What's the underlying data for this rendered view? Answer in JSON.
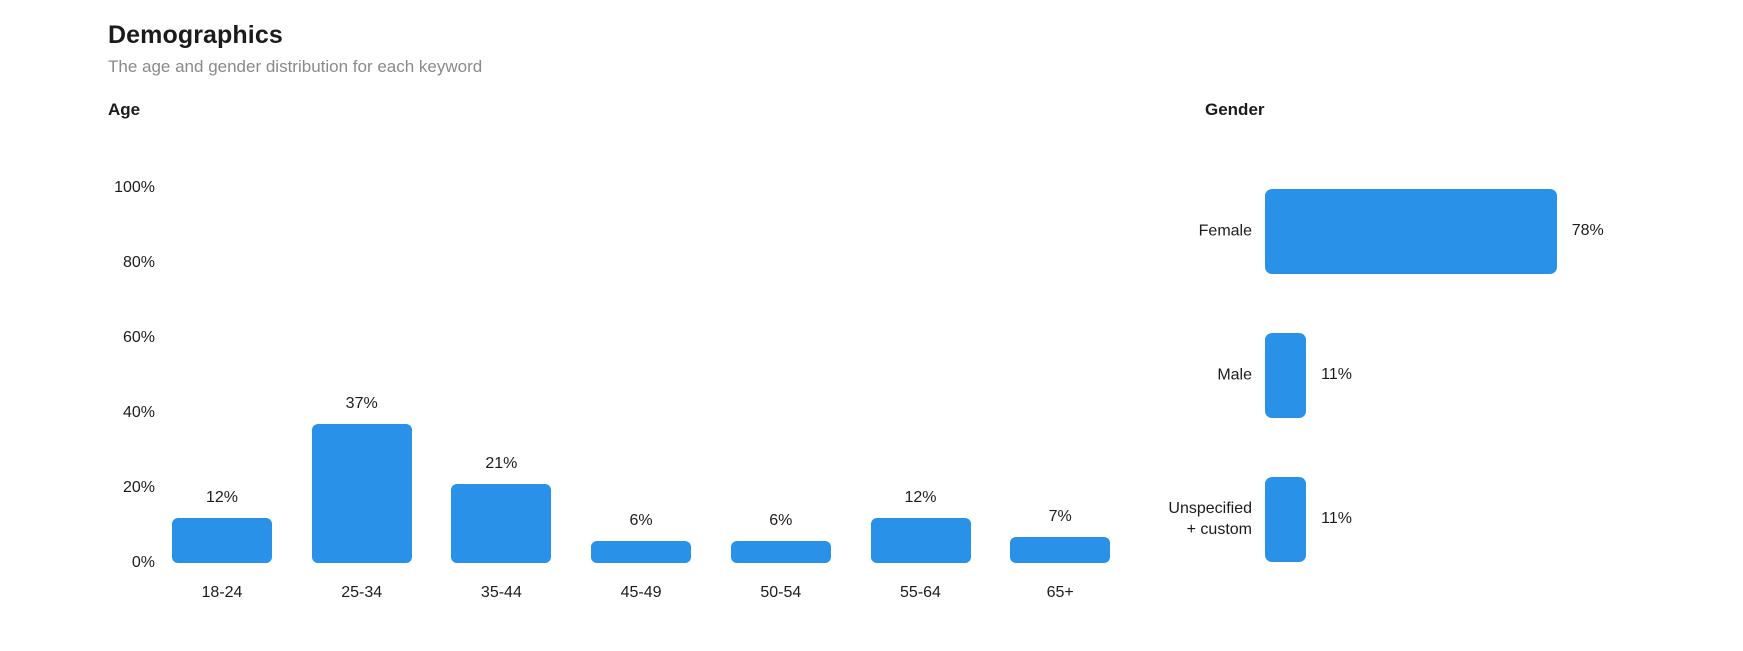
{
  "header": {
    "title": "Demographics",
    "subtitle": "The age and gender distribution for each keyword"
  },
  "colors": {
    "bar_blue": "#2A91E8",
    "title_text": "#1B1B1B",
    "subtitle_text": "#8A8A8A",
    "axis_text": "#1C1C1C",
    "background": "#FFFFFF"
  },
  "chart_data": [
    {
      "type": "bar",
      "title": "Age",
      "orientation": "vertical",
      "categories": [
        "18-24",
        "25-34",
        "35-44",
        "45-49",
        "50-54",
        "55-64",
        "65+"
      ],
      "values": [
        12,
        37,
        21,
        6,
        6,
        12,
        7
      ],
      "value_labels": [
        "12%",
        "37%",
        "21%",
        "6%",
        "6%",
        "12%",
        "7%"
      ],
      "yticks": [
        "100%",
        "80%",
        "60%",
        "40%",
        "20%",
        "0%"
      ],
      "ytick_values": [
        100,
        80,
        60,
        40,
        20,
        0
      ],
      "ylim": [
        0,
        100
      ],
      "xlabel": "",
      "ylabel": "",
      "grid": false,
      "legend": false,
      "bar_color": "#2A91E8"
    },
    {
      "type": "bar",
      "title": "Gender",
      "orientation": "horizontal",
      "categories": [
        "Female",
        "Male",
        "Unspecified + custom"
      ],
      "values": [
        78,
        11,
        11
      ],
      "value_labels": [
        "78%",
        "11%",
        "11%"
      ],
      "xlim": [
        0,
        100
      ],
      "xlabel": "",
      "ylabel": "",
      "grid": false,
      "legend": false,
      "bar_color": "#2A91E8"
    }
  ]
}
